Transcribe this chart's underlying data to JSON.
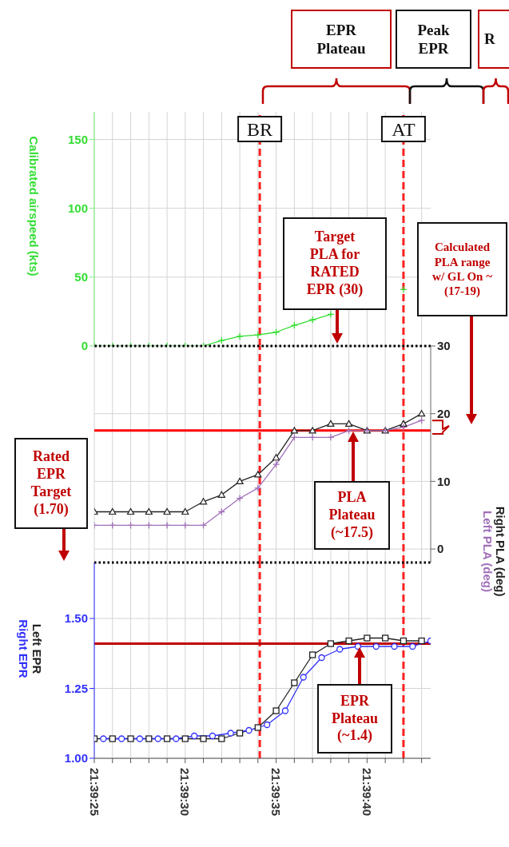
{
  "chart_data": [
    {
      "type": "line",
      "ylabel": "Calibrated airspeed (kts)",
      "tick_labels": "y",
      "grid": true,
      "x": [
        21.656944,
        21.657222,
        21.6575,
        21.657778,
        21.658056,
        21.658333,
        21.658611,
        21.658889,
        21.659167,
        21.659444,
        21.659722,
        21.66,
        21.660278,
        21.660556,
        21.660833,
        21.661111,
        21.661389,
        21.661667
      ],
      "series": [
        {
          "color": "#33dd33",
          "marker": "cross",
          "values": [
            0,
            0,
            0,
            0,
            0,
            0,
            0,
            4,
            7,
            8,
            10,
            15,
            19,
            23,
            null,
            null,
            null,
            41
          ]
        }
      ],
      "xlim": [
        21.656944,
        21.662083
      ],
      "xticks": [
        21.656944,
        21.657222,
        21.6575,
        21.657778,
        21.658056,
        21.658333,
        21.658611,
        21.658889,
        21.659167,
        21.659444,
        21.659722,
        21.66,
        21.660278,
        21.660556,
        21.660833,
        21.661111,
        21.661389,
        21.661667,
        21.661944
      ],
      "ylim": [
        0,
        170
      ],
      "yticks": [
        0,
        50,
        100,
        150
      ],
      "ref_lines": [
        {
          "axis": "x",
          "value": 21.659472,
          "label": "BR",
          "color": "#ff2020",
          "line_style": "dashed"
        },
        {
          "axis": "x",
          "value": 21.661667,
          "label": "AT",
          "color": "#ff2020",
          "line_style": "dashed"
        }
      ],
      "annotations": [
        "EPR Plateau",
        "Peak EPR",
        "R"
      ]
    },
    {
      "type": "line",
      "tick_labels": "y",
      "grid": true,
      "x": [
        21.656944,
        21.657222,
        21.6575,
        21.657778,
        21.658056,
        21.658333,
        21.658611,
        21.658889,
        21.659167,
        21.659444,
        21.659722,
        21.66,
        21.660278,
        21.660556,
        21.660833,
        21.661111,
        21.661389,
        21.661667,
        21.661944
      ],
      "series": [
        {
          "name": "Right PLA (deg)",
          "color": "#222222",
          "marker": "triangle",
          "values": [
            5.5,
            5.5,
            5.5,
            5.5,
            5.5,
            5.5,
            7,
            8,
            10,
            11,
            13.5,
            17.5,
            17.5,
            18.5,
            18.5,
            17.5,
            17.5,
            18.5,
            20
          ]
        },
        {
          "name": "Left PLA (deg)",
          "color": "#a070b8",
          "marker": "cross",
          "values": [
            3.5,
            3.5,
            3.5,
            3.5,
            3.5,
            3.5,
            3.5,
            5.5,
            7.5,
            9,
            12.5,
            16.5,
            16.5,
            16.5,
            17.5,
            17.5,
            17.5,
            18,
            19
          ]
        }
      ],
      "xlim": [
        21.656944,
        21.662083
      ],
      "xticks": [
        21.656944,
        21.657222,
        21.6575,
        21.657778,
        21.658056,
        21.658333,
        21.658611,
        21.658889,
        21.659167,
        21.659444,
        21.659722,
        21.66,
        21.660278,
        21.660556,
        21.660833,
        21.661111,
        21.661389,
        21.661667,
        21.661944
      ],
      "ylim": [
        -2,
        30
      ],
      "yticks": [
        0,
        10,
        20,
        30
      ],
      "ref_lines": [
        {
          "axis": "x",
          "value": 21.659472,
          "color": "#ff2020",
          "line_style": "dashed"
        },
        {
          "axis": "x",
          "value": 21.661667,
          "color": "#ff2020",
          "line_style": "dashed"
        },
        {
          "axis": "y",
          "value": 30,
          "color": "#000000",
          "line_style": "dotted"
        },
        {
          "axis": "y",
          "value": 17.5,
          "color": "#ff0000",
          "line_style": "solid"
        }
      ],
      "annotations": [
        "Target PLA for RATED EPR (30)",
        "Calculated PLA range w/ GL On ~(17-19)",
        "PLA Plateau (~17.5)"
      ]
    },
    {
      "type": "line",
      "grid": true,
      "x": [
        21.656944,
        21.657222,
        21.6575,
        21.657778,
        21.658056,
        21.658333,
        21.658611,
        21.658889,
        21.659167,
        21.659444,
        21.659722,
        21.66,
        21.660278,
        21.660556,
        21.660833,
        21.661111,
        21.661389,
        21.661667,
        21.661944
      ],
      "series": [
        {
          "name": "Left EPR",
          "color": "#222222",
          "marker": "square",
          "values": [
            1.07,
            1.07,
            1.07,
            1.07,
            1.07,
            1.07,
            1.07,
            1.07,
            1.09,
            1.11,
            1.17,
            1.27,
            1.37,
            1.41,
            1.42,
            1.43,
            1.43,
            1.42,
            1.42
          ]
        },
        {
          "name": "Right EPR",
          "color": "#3030ff",
          "marker": "circle",
          "x": [
            21.657083,
            21.657361,
            21.657639,
            21.657917,
            21.658194,
            21.658472,
            21.65875,
            21.659028,
            21.659306,
            21.659583,
            21.659861,
            21.660139,
            21.660417,
            21.660694,
            21.660972,
            21.66125,
            21.661528,
            21.661806,
            21.662083
          ],
          "values": [
            1.07,
            1.07,
            1.07,
            1.07,
            1.07,
            1.08,
            1.08,
            1.09,
            1.1,
            1.12,
            1.17,
            1.29,
            1.36,
            1.39,
            1.4,
            1.4,
            1.4,
            1.4,
            1.42
          ]
        }
      ],
      "xlim": [
        21.656944,
        21.662083
      ],
      "xticks": [
        {
          "value": 21.656944,
          "label": "21:39:25"
        },
        {
          "value": 21.657222,
          "label": null
        },
        {
          "value": 21.6575,
          "label": null
        },
        {
          "value": 21.657778,
          "label": null
        },
        {
          "value": 21.658056,
          "label": null
        },
        {
          "value": 21.658333,
          "label": "21:39:30"
        },
        {
          "value": 21.658611,
          "label": null
        },
        {
          "value": 21.658889,
          "label": null
        },
        {
          "value": 21.659167,
          "label": null
        },
        {
          "value": 21.659444,
          "label": null
        },
        {
          "value": 21.659722,
          "label": "21:39:35"
        },
        {
          "value": 21.66,
          "label": null
        },
        {
          "value": 21.660278,
          "label": null
        },
        {
          "value": 21.660556,
          "label": null
        },
        {
          "value": 21.660833,
          "label": null
        },
        {
          "value": 21.661111,
          "label": "21:39:40"
        },
        {
          "value": 21.661389,
          "label": null
        },
        {
          "value": 21.661667,
          "label": null
        },
        {
          "value": 21.661944,
          "label": null
        }
      ],
      "ylim": [
        1,
        1.7
      ],
      "yticks": [
        {
          "value": 1,
          "label": "1.00"
        },
        {
          "value": 1.25,
          "label": "1.25"
        },
        {
          "value": 1.5,
          "label": "1.50"
        }
      ],
      "ref_lines": [
        {
          "axis": "x",
          "value": 21.659472,
          "color": "#ff2020",
          "line_style": "dashed"
        },
        {
          "axis": "x",
          "value": 21.661667,
          "color": "#ff2020",
          "line_style": "dashed"
        },
        {
          "axis": "y",
          "value": 1.7,
          "color": "#000000",
          "line_style": "dotted"
        },
        {
          "axis": "y",
          "value": 1.41,
          "color": "#c00000",
          "line_style": "solid"
        }
      ],
      "annotations": [
        "Rated EPR Target (1.70)",
        "EPR Plateau (~1.4)"
      ]
    }
  ]
}
